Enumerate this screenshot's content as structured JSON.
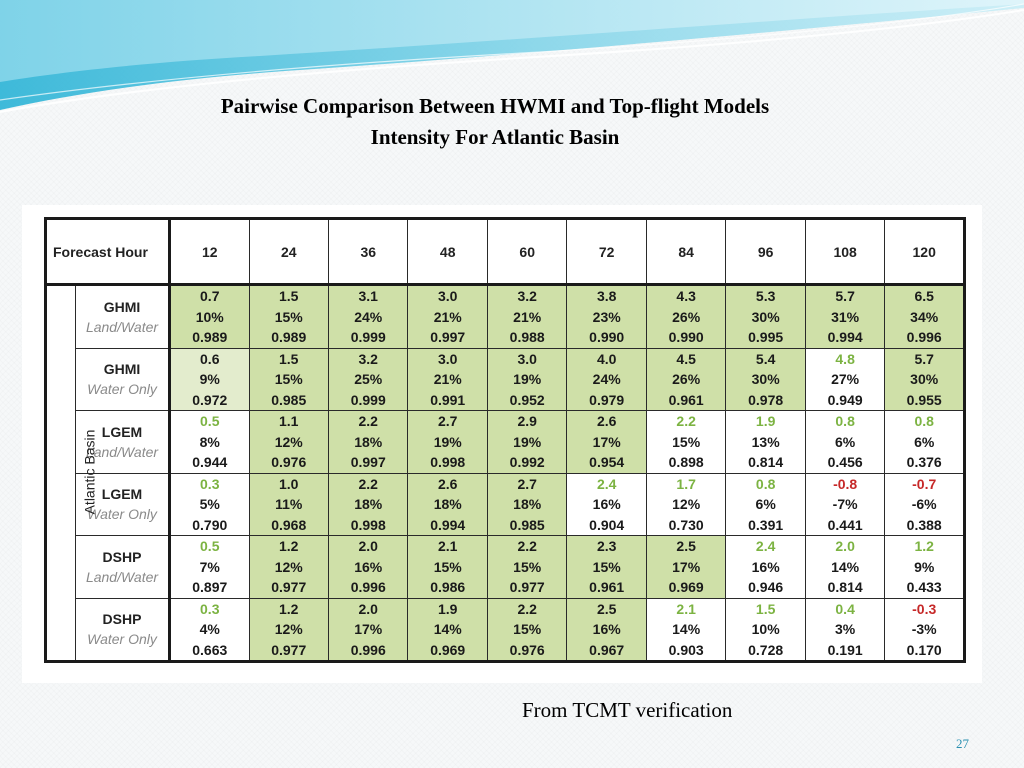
{
  "title_line1": "Pairwise Comparison Between HWMI and Top-flight Models",
  "title_line2": "Intensity For Atlantic Basin",
  "table": {
    "header_label": "Forecast Hour",
    "hours": [
      "12",
      "24",
      "36",
      "48",
      "60",
      "72",
      "84",
      "96",
      "108",
      "120"
    ],
    "basin_label": "Atlantic Basin",
    "rows": [
      {
        "model": "GHMI",
        "subtitle": "Land/Water",
        "cells": [
          {
            "v": "0.7",
            "p": "10%",
            "r": "0.989",
            "bg": "green",
            "vc": "black"
          },
          {
            "v": "1.5",
            "p": "15%",
            "r": "0.989",
            "bg": "green",
            "vc": "black"
          },
          {
            "v": "3.1",
            "p": "24%",
            "r": "0.999",
            "bg": "green",
            "vc": "black"
          },
          {
            "v": "3.0",
            "p": "21%",
            "r": "0.997",
            "bg": "green",
            "vc": "black"
          },
          {
            "v": "3.2",
            "p": "21%",
            "r": "0.988",
            "bg": "green",
            "vc": "black"
          },
          {
            "v": "3.8",
            "p": "23%",
            "r": "0.990",
            "bg": "green",
            "vc": "black"
          },
          {
            "v": "4.3",
            "p": "26%",
            "r": "0.990",
            "bg": "green",
            "vc": "black"
          },
          {
            "v": "5.3",
            "p": "30%",
            "r": "0.995",
            "bg": "green",
            "vc": "black"
          },
          {
            "v": "5.7",
            "p": "31%",
            "r": "0.994",
            "bg": "green",
            "vc": "black"
          },
          {
            "v": "6.5",
            "p": "34%",
            "r": "0.996",
            "bg": "green",
            "vc": "black"
          }
        ]
      },
      {
        "model": "GHMI",
        "subtitle": "Water Only",
        "cells": [
          {
            "v": "0.6",
            "p": "9%",
            "r": "0.972",
            "bg": "light",
            "vc": "black"
          },
          {
            "v": "1.5",
            "p": "15%",
            "r": "0.985",
            "bg": "green",
            "vc": "black"
          },
          {
            "v": "3.2",
            "p": "25%",
            "r": "0.999",
            "bg": "green",
            "vc": "black"
          },
          {
            "v": "3.0",
            "p": "21%",
            "r": "0.991",
            "bg": "green",
            "vc": "black"
          },
          {
            "v": "3.0",
            "p": "19%",
            "r": "0.952",
            "bg": "green",
            "vc": "black"
          },
          {
            "v": "4.0",
            "p": "24%",
            "r": "0.979",
            "bg": "green",
            "vc": "black"
          },
          {
            "v": "4.5",
            "p": "26%",
            "r": "0.961",
            "bg": "green",
            "vc": "black"
          },
          {
            "v": "5.4",
            "p": "30%",
            "r": "0.978",
            "bg": "green",
            "vc": "black"
          },
          {
            "v": "4.8",
            "p": "27%",
            "r": "0.949",
            "bg": "white",
            "vc": "green"
          },
          {
            "v": "5.7",
            "p": "30%",
            "r": "0.955",
            "bg": "green",
            "vc": "black"
          }
        ]
      },
      {
        "model": "LGEM",
        "subtitle": "Land/Water",
        "cells": [
          {
            "v": "0.5",
            "p": "8%",
            "r": "0.944",
            "bg": "white",
            "vc": "green"
          },
          {
            "v": "1.1",
            "p": "12%",
            "r": "0.976",
            "bg": "green",
            "vc": "black"
          },
          {
            "v": "2.2",
            "p": "18%",
            "r": "0.997",
            "bg": "green",
            "vc": "black"
          },
          {
            "v": "2.7",
            "p": "19%",
            "r": "0.998",
            "bg": "green",
            "vc": "black"
          },
          {
            "v": "2.9",
            "p": "19%",
            "r": "0.992",
            "bg": "green",
            "vc": "black"
          },
          {
            "v": "2.6",
            "p": "17%",
            "r": "0.954",
            "bg": "green",
            "vc": "black"
          },
          {
            "v": "2.2",
            "p": "15%",
            "r": "0.898",
            "bg": "white",
            "vc": "green"
          },
          {
            "v": "1.9",
            "p": "13%",
            "r": "0.814",
            "bg": "white",
            "vc": "green"
          },
          {
            "v": "0.8",
            "p": "6%",
            "r": "0.456",
            "bg": "white",
            "vc": "green"
          },
          {
            "v": "0.8",
            "p": "6%",
            "r": "0.376",
            "bg": "white",
            "vc": "green"
          }
        ]
      },
      {
        "model": "LGEM",
        "subtitle": "Water Only",
        "cells": [
          {
            "v": "0.3",
            "p": "5%",
            "r": "0.790",
            "bg": "white",
            "vc": "green"
          },
          {
            "v": "1.0",
            "p": "11%",
            "r": "0.968",
            "bg": "green",
            "vc": "black"
          },
          {
            "v": "2.2",
            "p": "18%",
            "r": "0.998",
            "bg": "green",
            "vc": "black"
          },
          {
            "v": "2.6",
            "p": "18%",
            "r": "0.994",
            "bg": "green",
            "vc": "black"
          },
          {
            "v": "2.7",
            "p": "18%",
            "r": "0.985",
            "bg": "green",
            "vc": "black"
          },
          {
            "v": "2.4",
            "p": "16%",
            "r": "0.904",
            "bg": "white",
            "vc": "green"
          },
          {
            "v": "1.7",
            "p": "12%",
            "r": "0.730",
            "bg": "white",
            "vc": "green"
          },
          {
            "v": "0.8",
            "p": "6%",
            "r": "0.391",
            "bg": "white",
            "vc": "green"
          },
          {
            "v": "-0.8",
            "p": "-7%",
            "r": "0.441",
            "bg": "white",
            "vc": "red"
          },
          {
            "v": "-0.7",
            "p": "-6%",
            "r": "0.388",
            "bg": "white",
            "vc": "red"
          }
        ]
      },
      {
        "model": "DSHP",
        "subtitle": "Land/Water",
        "cells": [
          {
            "v": "0.5",
            "p": "7%",
            "r": "0.897",
            "bg": "white",
            "vc": "green"
          },
          {
            "v": "1.2",
            "p": "12%",
            "r": "0.977",
            "bg": "green",
            "vc": "black"
          },
          {
            "v": "2.0",
            "p": "16%",
            "r": "0.996",
            "bg": "green",
            "vc": "black"
          },
          {
            "v": "2.1",
            "p": "15%",
            "r": "0.986",
            "bg": "green",
            "vc": "black"
          },
          {
            "v": "2.2",
            "p": "15%",
            "r": "0.977",
            "bg": "green",
            "vc": "black"
          },
          {
            "v": "2.3",
            "p": "15%",
            "r": "0.961",
            "bg": "green",
            "vc": "black"
          },
          {
            "v": "2.5",
            "p": "17%",
            "r": "0.969",
            "bg": "green",
            "vc": "black"
          },
          {
            "v": "2.4",
            "p": "16%",
            "r": "0.946",
            "bg": "white",
            "vc": "green"
          },
          {
            "v": "2.0",
            "p": "14%",
            "r": "0.814",
            "bg": "white",
            "vc": "green"
          },
          {
            "v": "1.2",
            "p": "9%",
            "r": "0.433",
            "bg": "white",
            "vc": "green"
          }
        ]
      },
      {
        "model": "DSHP",
        "subtitle": "Water Only",
        "cells": [
          {
            "v": "0.3",
            "p": "4%",
            "r": "0.663",
            "bg": "white",
            "vc": "green"
          },
          {
            "v": "1.2",
            "p": "12%",
            "r": "0.977",
            "bg": "green",
            "vc": "black"
          },
          {
            "v": "2.0",
            "p": "17%",
            "r": "0.996",
            "bg": "green",
            "vc": "black"
          },
          {
            "v": "1.9",
            "p": "14%",
            "r": "0.969",
            "bg": "green",
            "vc": "black"
          },
          {
            "v": "2.2",
            "p": "15%",
            "r": "0.976",
            "bg": "green",
            "vc": "black"
          },
          {
            "v": "2.5",
            "p": "16%",
            "r": "0.967",
            "bg": "green",
            "vc": "black"
          },
          {
            "v": "2.1",
            "p": "14%",
            "r": "0.903",
            "bg": "white",
            "vc": "green"
          },
          {
            "v": "1.5",
            "p": "10%",
            "r": "0.728",
            "bg": "white",
            "vc": "green"
          },
          {
            "v": "0.4",
            "p": "3%",
            "r": "0.191",
            "bg": "white",
            "vc": "green"
          },
          {
            "v": "-0.3",
            "p": "-3%",
            "r": "0.170",
            "bg": "white",
            "vc": "red"
          }
        ]
      }
    ]
  },
  "footer_note": "From TCMT verification",
  "page_number": "27",
  "colors": {
    "cell_green": "#cfe0a8",
    "cell_light_green": "#e3eccd",
    "value_green": "#7cb342",
    "value_red": "#c62828",
    "page_number": "#2a8fb0"
  }
}
